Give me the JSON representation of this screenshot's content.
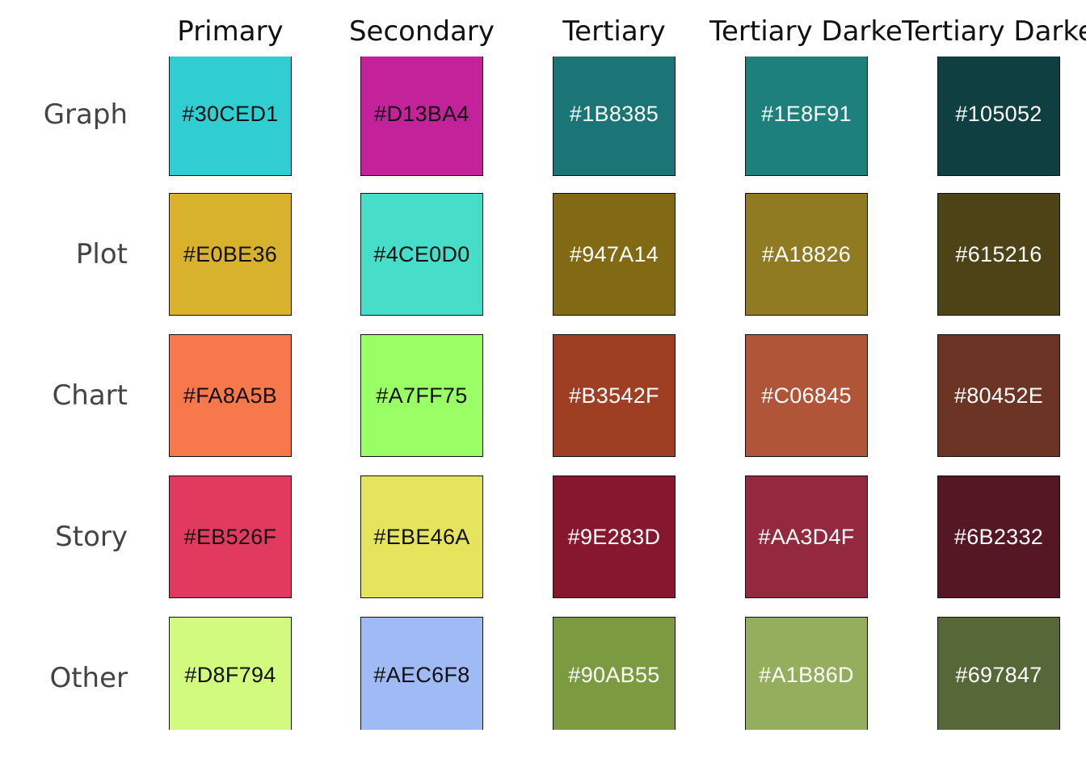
{
  "columns": [
    "Primary",
    "Secondary",
    "Tertiary",
    "Tertiary Darker",
    "Tertiary Darkest"
  ],
  "rows": [
    {
      "label": "Graph",
      "swatches": [
        {
          "code": "#30CED1",
          "color": "#30CED1",
          "text_color": "#111111"
        },
        {
          "code": "#D13BA4",
          "color": "#C4229A",
          "text_color": "#111111"
        },
        {
          "code": "#1B8385",
          "color": "#1B7475",
          "text_color": "#ffffff"
        },
        {
          "code": "#1E8F91",
          "color": "#1E807D",
          "text_color": "#ffffff"
        },
        {
          "code": "#105052",
          "color": "#103F42",
          "text_color": "#ffffff"
        }
      ]
    },
    {
      "label": "Plot",
      "swatches": [
        {
          "code": "#E0BE36",
          "color": "#D8B22C",
          "text_color": "#111111"
        },
        {
          "code": "#4CE0D0",
          "color": "#47DEC9",
          "text_color": "#111111"
        },
        {
          "code": "#947A14",
          "color": "#826A14",
          "text_color": "#ffffff"
        },
        {
          "code": "#A18826",
          "color": "#907A22",
          "text_color": "#ffffff"
        },
        {
          "code": "#615216",
          "color": "#4D4316",
          "text_color": "#ffffff"
        }
      ]
    },
    {
      "label": "Chart",
      "swatches": [
        {
          "code": "#FA8A5B",
          "color": "#F6784B",
          "text_color": "#111111"
        },
        {
          "code": "#A7FF75",
          "color": "#9AFF65",
          "text_color": "#111111"
        },
        {
          "code": "#B3542F",
          "color": "#9E3F24",
          "text_color": "#ffffff"
        },
        {
          "code": "#C06845",
          "color": "#B05538",
          "text_color": "#ffffff"
        },
        {
          "code": "#80452E",
          "color": "#6B3424",
          "text_color": "#ffffff"
        }
      ]
    },
    {
      "label": "Story",
      "swatches": [
        {
          "code": "#EB526F",
          "color": "#E23A5E",
          "text_color": "#111111"
        },
        {
          "code": "#EBE46A",
          "color": "#E6E35D",
          "text_color": "#111111"
        },
        {
          "code": "#9E283D",
          "color": "#86172F",
          "text_color": "#ffffff"
        },
        {
          "code": "#AA3D4F",
          "color": "#94283E",
          "text_color": "#ffffff"
        },
        {
          "code": "#6B2332",
          "color": "#561725",
          "text_color": "#ffffff"
        }
      ]
    },
    {
      "label": "Other",
      "swatches": [
        {
          "code": "#D8F794",
          "color": "#D2FA7E",
          "text_color": "#111111"
        },
        {
          "code": "#AEC6F8",
          "color": "#A0BAF5",
          "text_color": "#111111"
        },
        {
          "code": "#90AB55",
          "color": "#7C9B41",
          "text_color": "#ffffff"
        },
        {
          "code": "#A1B86D",
          "color": "#94AE5D",
          "text_color": "#ffffff"
        },
        {
          "code": "#697847",
          "color": "#566837",
          "text_color": "#ffffff"
        }
      ]
    }
  ]
}
